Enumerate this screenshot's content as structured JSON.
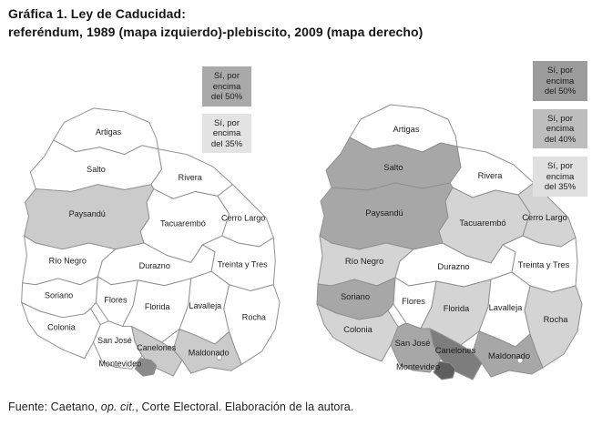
{
  "title": {
    "line1": "Gráfica 1. Ley de Caducidad:",
    "line2": "referéndum, 1989 (mapa izquierdo)-plebiscito, 2009 (mapa derecho)"
  },
  "footer": {
    "prefix": "Fuente: Caetano, ",
    "italic": "op. cit.",
    "suffix": ", Corte Electoral. Elaboración de la autora."
  },
  "department_names": {
    "artigas": "Artigas",
    "salto": "Salto",
    "rivera": "Rivera",
    "paysandu": "Paysandú",
    "tacuarembo": "Tacuarembó",
    "cerro_largo": "Cerro Largo",
    "rio_negro": "Río Negro",
    "durazno": "Durazno",
    "treinta_y_tres": "Treinta y Tres",
    "soriano": "Soriano",
    "flores": "Flores",
    "florida": "Florida",
    "lavalleja": "Lavalleja",
    "rocha": "Rocha",
    "colonia": "Colonia",
    "san_jose": "San José",
    "canelones": "Canelones",
    "maldonado": "Maldonado",
    "montevideo": "Montevideo"
  },
  "maps": [
    {
      "year": "1989",
      "name": "referéndum 1989 (mapa izquierdo)",
      "legend": [
        {
          "label": "Sí, por encima del 50%",
          "lines": [
            "Sí, por",
            "encima",
            "del 50%"
          ],
          "color": "#a9a9a9"
        },
        {
          "label": "Sí, por encima del 35%",
          "lines": [
            "Sí, por",
            "encima",
            "del 35%"
          ],
          "color": "#e3e3e3"
        }
      ],
      "category_colors": {
        "gt50": "#8a8a8a",
        "gt35": "#cbcbcb",
        "none": "#ffffff"
      },
      "fill_overrides": {},
      "departments": {
        "artigas": "none",
        "salto": "none",
        "rivera": "none",
        "paysandu": "gt35",
        "tacuarembo": "none",
        "cerro_largo": "none",
        "rio_negro": "none",
        "durazno": "none",
        "treinta_y_tres": "none",
        "soriano": "none",
        "flores": "none",
        "florida": "none",
        "lavalleja": "none",
        "rocha": "none",
        "colonia": "none",
        "san_jose": "none",
        "canelones": "gt35",
        "maldonado": "gt35",
        "montevideo": "gt50"
      }
    },
    {
      "year": "2009",
      "name": "plebiscito 2009 (mapa derecho)",
      "legend": [
        {
          "label": "Sí, por encima del 50%",
          "lines": [
            "Sí, por",
            "encima",
            "del 50%"
          ],
          "color": "#9b9b9b"
        },
        {
          "label": "Sí, por encima del 40%",
          "lines": [
            "Sí, por",
            "encima",
            "del 40%"
          ],
          "color": "#bdbdbd"
        },
        {
          "label": "Sí, por encima del 35%",
          "lines": [
            "Sí, por",
            "encima",
            "del 35%"
          ],
          "color": "#e0e0e0"
        }
      ],
      "category_colors": {
        "gt50": "#7d7d7d",
        "gt40": "#a7a7a7",
        "gt35": "#d4d4d4",
        "none": "#ffffff"
      },
      "fill_overrides": {
        "montevideo": "#5e5e5e"
      },
      "departments": {
        "artigas": "none",
        "salto": "gt40",
        "rivera": "none",
        "paysandu": "gt40",
        "tacuarembo": "gt35",
        "cerro_largo": "gt35",
        "rio_negro": "gt35",
        "durazno": "none",
        "treinta_y_tres": "none",
        "soriano": "gt40",
        "flores": "none",
        "florida": "gt35",
        "lavalleja": "none",
        "rocha": "gt35",
        "colonia": "gt35",
        "san_jose": "gt40",
        "canelones": "gt50",
        "maldonado": "gt40",
        "montevideo": "gt50"
      }
    }
  ]
}
